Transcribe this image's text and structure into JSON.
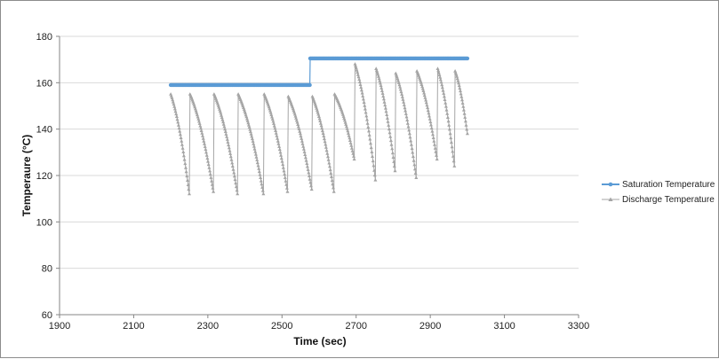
{
  "chart_data": {
    "type": "line",
    "title": "",
    "xlabel": "Time (sec)",
    "ylabel": "Temperaure (°C)",
    "xlim": [
      1900,
      3300
    ],
    "ylim": [
      60,
      180
    ],
    "xticks": [
      1900,
      2100,
      2300,
      2500,
      2700,
      2900,
      3100,
      3300
    ],
    "yticks": [
      60,
      80,
      100,
      120,
      140,
      160,
      180
    ],
    "x_tick_labels": [
      "1900",
      "2100",
      "2300",
      "2500",
      "2700",
      "2900",
      "3100",
      "3300"
    ],
    "y_tick_labels": [
      "60",
      "80",
      "100",
      "120",
      "140",
      "160",
      "180"
    ],
    "grid": "horizontal",
    "legend_position": "right",
    "series": [
      {
        "name": "Saturation Temperature",
        "color": "#5b9bd5",
        "marker": "circle",
        "x": [
          2200,
          2575,
          2576,
          3000
        ],
        "y": [
          159,
          159,
          170.5,
          170.5
        ]
      },
      {
        "name": "Discharge Temperature",
        "color": "#a5a5a5",
        "marker": "triangle",
        "cycles": [
          {
            "start": 2200,
            "end": 2250,
            "top": 155,
            "bottom": 112
          },
          {
            "start": 2252,
            "end": 2315,
            "top": 155,
            "bottom": 113
          },
          {
            "start": 2317,
            "end": 2380,
            "top": 155,
            "bottom": 112
          },
          {
            "start": 2382,
            "end": 2450,
            "top": 155,
            "bottom": 112
          },
          {
            "start": 2452,
            "end": 2515,
            "top": 155,
            "bottom": 113
          },
          {
            "start": 2517,
            "end": 2580,
            "top": 154,
            "bottom": 114
          },
          {
            "start": 2582,
            "end": 2640,
            "top": 154,
            "bottom": 113
          },
          {
            "start": 2642,
            "end": 2695,
            "top": 155,
            "bottom": 127
          },
          {
            "start": 2697,
            "end": 2752,
            "top": 168,
            "bottom": 118
          },
          {
            "start": 2754,
            "end": 2805,
            "top": 166,
            "bottom": 122
          },
          {
            "start": 2807,
            "end": 2862,
            "top": 164,
            "bottom": 119
          },
          {
            "start": 2864,
            "end": 2918,
            "top": 165,
            "bottom": 127
          },
          {
            "start": 2920,
            "end": 2965,
            "top": 166,
            "bottom": 124
          },
          {
            "start": 2967,
            "end": 3000,
            "top": 165,
            "bottom": 138
          }
        ]
      }
    ]
  }
}
